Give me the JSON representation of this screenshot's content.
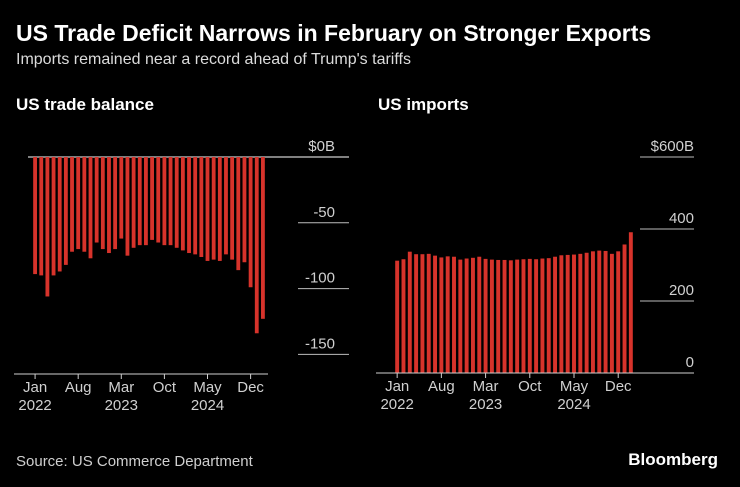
{
  "title": "US Trade Deficit Narrows in February on Stronger Exports",
  "subtitle": "Imports remained near a record ahead of Trump's tariffs",
  "source": "Source: US Commerce Department",
  "brand": "Bloomberg",
  "colors": {
    "bar": "#d7332b",
    "axis": "#ffffff",
    "text": "#d0d0d0"
  },
  "chart_data": [
    {
      "type": "bar",
      "title": "US trade balance",
      "x_tick_labels": [
        {
          "index": 0,
          "month": "Jan",
          "year": "2022"
        },
        {
          "index": 7,
          "month": "Aug",
          "year": ""
        },
        {
          "index": 14,
          "month": "Mar",
          "year": "2023"
        },
        {
          "index": 21,
          "month": "Oct",
          "year": ""
        },
        {
          "index": 28,
          "month": "May",
          "year": "2024"
        },
        {
          "index": 35,
          "month": "Dec",
          "year": ""
        }
      ],
      "y_ticks": [
        {
          "value": 0,
          "label": "$0B"
        },
        {
          "value": -50,
          "label": "-50"
        },
        {
          "value": -100,
          "label": "-100"
        },
        {
          "value": -150,
          "label": "-150"
        }
      ],
      "ylim": [
        -160,
        0
      ],
      "x": [
        "2022-01",
        "2022-02",
        "2022-03",
        "2022-04",
        "2022-05",
        "2022-06",
        "2022-07",
        "2022-08",
        "2022-09",
        "2022-10",
        "2022-11",
        "2022-12",
        "2023-01",
        "2023-02",
        "2023-03",
        "2023-04",
        "2023-05",
        "2023-06",
        "2023-07",
        "2023-08",
        "2023-09",
        "2023-10",
        "2023-11",
        "2023-12",
        "2024-01",
        "2024-02",
        "2024-03",
        "2024-04",
        "2024-05",
        "2024-06",
        "2024-07",
        "2024-08",
        "2024-09",
        "2024-10",
        "2024-11",
        "2024-12",
        "2025-01",
        "2025-02"
      ],
      "values": [
        -89,
        -90,
        -106,
        -90,
        -87,
        -82,
        -72,
        -70,
        -72,
        -77,
        -65,
        -70,
        -73,
        -70,
        -62,
        -75,
        -69,
        -67,
        -67,
        -63,
        -65,
        -67,
        -67,
        -69,
        -71,
        -73,
        -74,
        -76,
        -79,
        -78,
        -79,
        -74,
        -78,
        -86,
        -80,
        -99,
        -134,
        -123
      ]
    },
    {
      "type": "bar",
      "title": "US imports",
      "x_tick_labels": [
        {
          "index": 0,
          "month": "Jan",
          "year": "2022"
        },
        {
          "index": 7,
          "month": "Aug",
          "year": ""
        },
        {
          "index": 14,
          "month": "Mar",
          "year": "2023"
        },
        {
          "index": 21,
          "month": "Oct",
          "year": ""
        },
        {
          "index": 28,
          "month": "May",
          "year": "2024"
        },
        {
          "index": 35,
          "month": "Dec",
          "year": ""
        }
      ],
      "y_ticks": [
        {
          "value": 0,
          "label": "0"
        },
        {
          "value": 200,
          "label": "200"
        },
        {
          "value": 400,
          "label": "400"
        },
        {
          "value": 600,
          "label": "$600B"
        }
      ],
      "ylim": [
        0,
        600
      ],
      "x": [
        "2022-01",
        "2022-02",
        "2022-03",
        "2022-04",
        "2022-05",
        "2022-06",
        "2022-07",
        "2022-08",
        "2022-09",
        "2022-10",
        "2022-11",
        "2022-12",
        "2023-01",
        "2023-02",
        "2023-03",
        "2023-04",
        "2023-05",
        "2023-06",
        "2023-07",
        "2023-08",
        "2023-09",
        "2023-10",
        "2023-11",
        "2023-12",
        "2024-01",
        "2024-02",
        "2024-03",
        "2024-04",
        "2024-05",
        "2024-06",
        "2024-07",
        "2024-08",
        "2024-09",
        "2024-10",
        "2024-11",
        "2024-12",
        "2025-01",
        "2025-02"
      ],
      "values": [
        312,
        316,
        337,
        330,
        330,
        331,
        326,
        321,
        324,
        323,
        315,
        318,
        320,
        323,
        317,
        315,
        314,
        314,
        313,
        315,
        316,
        317,
        316,
        318,
        319,
        323,
        327,
        328,
        329,
        331,
        334,
        338,
        340,
        339,
        331,
        338,
        357,
        391
      ]
    }
  ]
}
